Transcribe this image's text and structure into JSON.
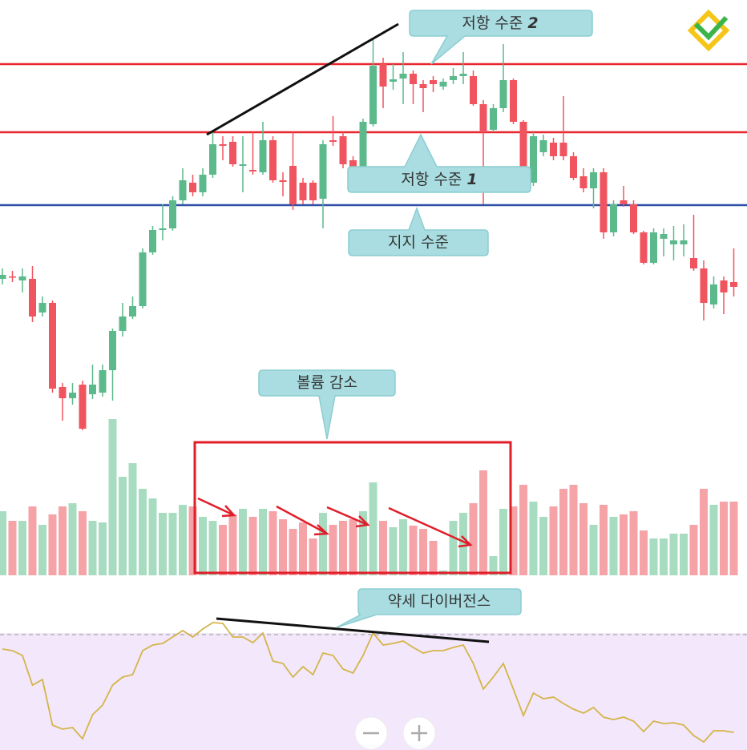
{
  "chart_data": [
    {
      "type": "candlestick",
      "open": [
        192,
        195,
        190,
        192,
        150,
        162,
        57,
        43,
        60,
        48,
        50,
        78,
        127,
        145,
        158,
        225,
        253,
        255,
        290,
        312,
        300,
        322,
        360,
        363,
        333,
        328,
        325,
        365,
        315,
        333,
        312,
        312,
        292,
        365,
        370,
        340,
        330,
        385,
        460,
        438,
        442,
        448,
        435,
        440,
        432,
        440,
        445,
        445,
        410,
        378,
        405,
        440,
        388,
        312,
        350,
        362,
        362,
        345,
        320,
        305,
        325,
        250,
        290,
        285,
        250,
        212,
        242,
        235,
        235,
        218,
        205,
        160,
        190,
        188
      ],
      "high": [
        205,
        202,
        205,
        208,
        170,
        165,
        62,
        62,
        65,
        85,
        85,
        130,
        162,
        170,
        230,
        258,
        285,
        295,
        330,
        322,
        330,
        375,
        370,
        370,
        370,
        375,
        388,
        370,
        325,
        375,
        318,
        315,
        365,
        395,
        375,
        345,
        392,
        492,
        468,
        460,
        475,
        452,
        440,
        445,
        442,
        455,
        475,
        452,
        415,
        410,
        485,
        442,
        390,
        375,
        372,
        368,
        420,
        350,
        330,
        330,
        330,
        290,
        308,
        290,
        252,
        255,
        255,
        258,
        260,
        272,
        215,
        195,
        195,
        230
      ],
      "low": [
        185,
        188,
        175,
        138,
        145,
        50,
        15,
        35,
        3,
        42,
        45,
        40,
        120,
        142,
        155,
        222,
        240,
        252,
        285,
        295,
        295,
        318,
        340,
        332,
        300,
        322,
        322,
        312,
        295,
        278,
        285,
        285,
        255,
        358,
        330,
        325,
        327,
        382,
        405,
        428,
        410,
        410,
        400,
        425,
        428,
        435,
        435,
        408,
        285,
        375,
        400,
        385,
        308,
        308,
        345,
        340,
        340,
        315,
        300,
        280,
        242,
        245,
        282,
        248,
        210,
        210,
        220,
        215,
        220,
        202,
        140,
        155,
        148,
        170
      ],
      "close": [
        197,
        194,
        195,
        145,
        162,
        55,
        43,
        50,
        5,
        60,
        78,
        127,
        145,
        158,
        225,
        253,
        255,
        290,
        315,
        300,
        322,
        360,
        358,
        335,
        335,
        326,
        365,
        315,
        313,
        285,
        290,
        290,
        360,
        363,
        335,
        328,
        388,
        458,
        432,
        441,
        448,
        435,
        430,
        435,
        438,
        445,
        448,
        410,
        375,
        405,
        440,
        388,
        312,
        370,
        365,
        345,
        345,
        318,
        305,
        325,
        250,
        285,
        285,
        250,
        212,
        250,
        248,
        240,
        240,
        205,
        162,
        185,
        175,
        182
      ],
      "up_color": "#5cb98b",
      "down_color": "#f0545f",
      "ylim": [
        0,
        540
      ],
      "levels": [
        {
          "text": "저항 수준",
          "number": "2",
          "value": 460,
          "color": "#e8262e"
        },
        {
          "text": "저항 수준",
          "number": "1",
          "value": 375,
          "color": "#e8262e"
        },
        {
          "text": "지지 수준",
          "value": 284,
          "color": "#2f4fa8"
        }
      ]
    },
    {
      "type": "bar",
      "values": [
        80,
        68,
        68,
        86,
        63,
        76,
        86,
        90,
        80,
        68,
        66,
        195,
        123,
        140,
        108,
        96,
        78,
        78,
        88,
        86,
        73,
        68,
        63,
        76,
        83,
        73,
        83,
        80,
        70,
        58,
        66,
        46,
        78,
        63,
        68,
        70,
        80,
        116,
        68,
        60,
        70,
        62,
        58,
        43,
        6,
        68,
        78,
        90,
        131,
        24,
        83,
        86,
        113,
        92,
        73,
        86,
        108,
        113,
        90,
        63,
        88,
        73,
        76,
        80,
        56,
        46,
        46,
        52,
        52,
        63,
        108,
        88,
        92,
        92
      ],
      "up_color": "#a8dcc0",
      "down_color": "#f6a3a8",
      "ylim": [
        0,
        220
      ],
      "annotation": "볼륨 감소"
    },
    {
      "type": "line",
      "values": [
        126,
        124,
        118,
        81,
        88,
        31,
        26,
        28,
        14,
        44,
        56,
        81,
        91,
        94,
        124,
        131,
        133,
        141,
        149,
        141,
        151,
        159,
        158,
        141,
        141,
        134,
        146,
        111,
        108,
        91,
        104,
        94,
        121,
        118,
        101,
        96,
        118,
        146,
        131,
        133,
        136,
        128,
        121,
        124,
        124,
        128,
        131,
        108,
        76,
        91,
        108,
        76,
        43,
        71,
        64,
        66,
        58,
        51,
        46,
        53,
        41,
        38,
        41,
        36,
        23,
        36,
        33,
        34,
        31,
        18,
        10,
        24,
        24,
        22
      ],
      "color": "#d4b54a",
      "ylim": [
        0,
        176
      ],
      "level": 144,
      "annotation": "약세 다이버전스"
    }
  ]
}
